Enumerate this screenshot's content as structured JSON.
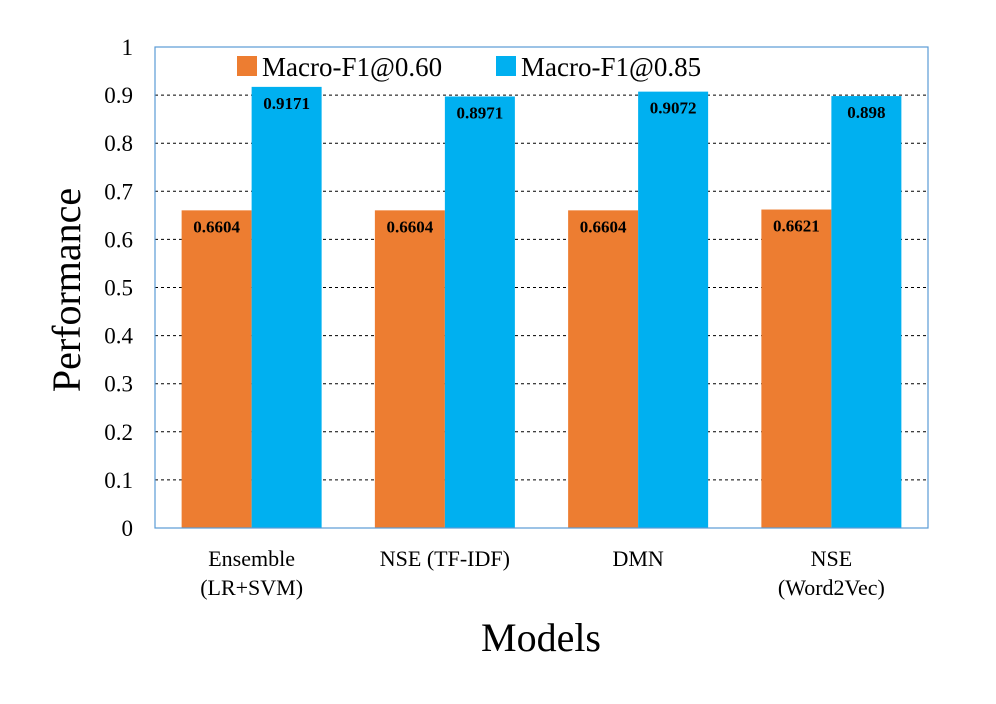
{
  "chart_data": {
    "type": "bar",
    "title": "",
    "xlabel": "Models",
    "ylabel": "Performance",
    "ylim": [
      0,
      1
    ],
    "yticks": [
      "0",
      "0.1",
      "0.2",
      "0.3",
      "0.4",
      "0.5",
      "0.6",
      "0.7",
      "0.8",
      "0.9",
      "1"
    ],
    "grid": "horizontal-dashed",
    "legend_position": "top-left",
    "categories": [
      [
        "Ensemble",
        "(LR+SVM)"
      ],
      [
        "NSE (TF-IDF)"
      ],
      [
        "DMN"
      ],
      [
        "NSE",
        "(Word2Vec)"
      ]
    ],
    "series": [
      {
        "name": "Macro-F1@0.60",
        "color": "#ED7D31",
        "values": [
          0.6604,
          0.6604,
          0.6604,
          0.6621
        ],
        "labels": [
          "0.6604",
          "0.6604",
          "0.6604",
          "0.6621"
        ]
      },
      {
        "name": "Macro-F1@0.85",
        "color": "#00B0F0",
        "values": [
          0.9171,
          0.8971,
          0.9072,
          0.898
        ],
        "labels": [
          "0.9171",
          "0.8971",
          "0.9072",
          "0.898"
        ]
      }
    ]
  }
}
